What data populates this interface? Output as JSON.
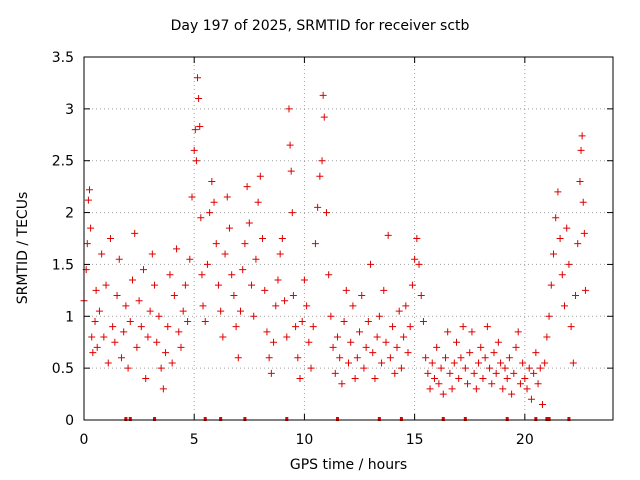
{
  "chart_data": {
    "type": "scatter",
    "title": "Day 197 of 2025, SRMTID for receiver sctb",
    "xlabel": "GPS time / hours",
    "ylabel": "SRMTID / TECUs",
    "xlim": [
      0,
      24
    ],
    "ylim": [
      0,
      3.5
    ],
    "xticks": [
      0,
      5,
      10,
      15,
      20
    ],
    "yticks": [
      0,
      0.5,
      1,
      1.5,
      2,
      2.5,
      3,
      3.5
    ],
    "xtick_labels": [
      "0",
      "5",
      "10",
      "15",
      "20"
    ],
    "ytick_labels": [
      "0",
      "0.5",
      "1",
      "1.5",
      "2",
      "2.5",
      "3",
      "3.5"
    ],
    "grid": true,
    "marker": "+",
    "marker_color": "#e00000",
    "series": [
      {
        "name": "SRMTID",
        "points": [
          [
            0.0,
            1.15
          ],
          [
            0.1,
            1.45
          ],
          [
            0.15,
            1.7
          ],
          [
            0.2,
            2.12
          ],
          [
            0.25,
            2.22
          ],
          [
            0.3,
            1.85
          ],
          [
            0.35,
            0.8
          ],
          [
            0.4,
            0.65
          ],
          [
            0.5,
            0.95
          ],
          [
            0.55,
            1.25
          ],
          [
            0.6,
            0.7
          ],
          [
            0.7,
            1.05
          ],
          [
            0.8,
            1.6
          ],
          [
            0.9,
            0.8
          ],
          [
            1.0,
            1.3
          ],
          [
            1.1,
            0.55
          ],
          [
            1.2,
            1.75
          ],
          [
            1.3,
            0.9
          ],
          [
            1.4,
            0.75
          ],
          [
            1.5,
            1.2
          ],
          [
            1.6,
            1.55
          ],
          [
            1.7,
            0.6
          ],
          [
            1.8,
            0.85
          ],
          [
            1.9,
            1.1
          ],
          [
            2.0,
            0.5
          ],
          [
            2.1,
            0.95
          ],
          [
            2.2,
            1.35
          ],
          [
            2.3,
            1.8
          ],
          [
            2.4,
            0.7
          ],
          [
            2.5,
            1.15
          ],
          [
            2.6,
            0.9
          ],
          [
            2.7,
            1.45
          ],
          [
            2.8,
            0.4
          ],
          [
            2.9,
            0.8
          ],
          [
            3.0,
            1.05
          ],
          [
            3.1,
            1.6
          ],
          [
            3.2,
            1.3
          ],
          [
            3.3,
            0.75
          ],
          [
            3.4,
            1.0
          ],
          [
            3.5,
            0.5
          ],
          [
            3.6,
            0.3
          ],
          [
            3.7,
            0.65
          ],
          [
            3.8,
            0.9
          ],
          [
            3.9,
            1.4
          ],
          [
            4.0,
            0.55
          ],
          [
            4.1,
            1.2
          ],
          [
            4.2,
            1.65
          ],
          [
            4.3,
            0.85
          ],
          [
            4.4,
            0.7
          ],
          [
            4.5,
            1.05
          ],
          [
            4.6,
            1.3
          ],
          [
            4.7,
            0.95
          ],
          [
            4.8,
            1.55
          ],
          [
            4.9,
            2.15
          ],
          [
            5.0,
            2.6
          ],
          [
            5.05,
            2.8
          ],
          [
            5.1,
            2.5
          ],
          [
            5.15,
            3.3
          ],
          [
            5.2,
            3.1
          ],
          [
            5.25,
            2.83
          ],
          [
            5.3,
            1.95
          ],
          [
            5.35,
            1.4
          ],
          [
            5.4,
            1.1
          ],
          [
            5.5,
            0.95
          ],
          [
            5.6,
            1.5
          ],
          [
            5.7,
            2.0
          ],
          [
            5.8,
            2.3
          ],
          [
            5.9,
            2.1
          ],
          [
            6.0,
            1.7
          ],
          [
            6.1,
            1.3
          ],
          [
            6.2,
            1.05
          ],
          [
            6.3,
            0.8
          ],
          [
            6.4,
            1.6
          ],
          [
            6.5,
            2.15
          ],
          [
            6.6,
            1.85
          ],
          [
            6.7,
            1.4
          ],
          [
            6.8,
            1.2
          ],
          [
            6.9,
            0.9
          ],
          [
            7.0,
            0.6
          ],
          [
            7.1,
            1.05
          ],
          [
            7.2,
            1.45
          ],
          [
            7.3,
            1.7
          ],
          [
            7.4,
            2.25
          ],
          [
            7.5,
            1.9
          ],
          [
            7.6,
            1.3
          ],
          [
            7.7,
            1.0
          ],
          [
            7.8,
            1.55
          ],
          [
            7.9,
            2.1
          ],
          [
            8.0,
            2.35
          ],
          [
            8.1,
            1.75
          ],
          [
            8.2,
            1.25
          ],
          [
            8.3,
            0.85
          ],
          [
            8.4,
            0.6
          ],
          [
            8.5,
            0.45
          ],
          [
            8.6,
            0.75
          ],
          [
            8.7,
            1.1
          ],
          [
            8.8,
            1.35
          ],
          [
            8.9,
            1.6
          ],
          [
            9.0,
            1.75
          ],
          [
            9.1,
            1.15
          ],
          [
            9.2,
            0.8
          ],
          [
            9.3,
            3.0
          ],
          [
            9.35,
            2.65
          ],
          [
            9.4,
            2.4
          ],
          [
            9.45,
            2.0
          ],
          [
            9.5,
            1.2
          ],
          [
            9.6,
            0.9
          ],
          [
            9.7,
            0.6
          ],
          [
            9.8,
            0.4
          ],
          [
            9.9,
            0.95
          ],
          [
            10.0,
            1.35
          ],
          [
            10.1,
            1.1
          ],
          [
            10.2,
            0.75
          ],
          [
            10.3,
            0.5
          ],
          [
            10.4,
            0.9
          ],
          [
            10.5,
            1.7
          ],
          [
            10.6,
            2.05
          ],
          [
            10.7,
            2.35
          ],
          [
            10.8,
            2.5
          ],
          [
            10.85,
            3.13
          ],
          [
            10.9,
            2.92
          ],
          [
            11.0,
            2.0
          ],
          [
            11.1,
            1.4
          ],
          [
            11.2,
            1.0
          ],
          [
            11.3,
            0.7
          ],
          [
            11.4,
            0.45
          ],
          [
            11.5,
            0.8
          ],
          [
            11.6,
            0.6
          ],
          [
            11.7,
            0.35
          ],
          [
            11.8,
            0.95
          ],
          [
            11.9,
            1.25
          ],
          [
            12.0,
            0.55
          ],
          [
            12.1,
            0.75
          ],
          [
            12.2,
            1.1
          ],
          [
            12.3,
            0.4
          ],
          [
            12.4,
            0.6
          ],
          [
            12.5,
            0.85
          ],
          [
            12.6,
            1.2
          ],
          [
            12.7,
            0.5
          ],
          [
            12.8,
            0.7
          ],
          [
            12.9,
            0.95
          ],
          [
            13.0,
            1.5
          ],
          [
            13.1,
            0.65
          ],
          [
            13.2,
            0.4
          ],
          [
            13.3,
            0.8
          ],
          [
            13.4,
            1.0
          ],
          [
            13.5,
            0.55
          ],
          [
            13.6,
            1.25
          ],
          [
            13.7,
            0.75
          ],
          [
            13.8,
            1.78
          ],
          [
            13.9,
            0.6
          ],
          [
            14.0,
            0.9
          ],
          [
            14.1,
            0.45
          ],
          [
            14.2,
            0.7
          ],
          [
            14.3,
            1.05
          ],
          [
            14.4,
            0.5
          ],
          [
            14.5,
            0.8
          ],
          [
            14.6,
            1.1
          ],
          [
            14.7,
            0.65
          ],
          [
            14.8,
            0.9
          ],
          [
            14.9,
            1.3
          ],
          [
            15.0,
            1.55
          ],
          [
            15.1,
            1.75
          ],
          [
            15.2,
            1.5
          ],
          [
            15.3,
            1.2
          ],
          [
            15.4,
            0.95
          ],
          [
            15.5,
            0.6
          ],
          [
            15.6,
            0.45
          ],
          [
            15.7,
            0.3
          ],
          [
            15.8,
            0.55
          ],
          [
            15.9,
            0.4
          ],
          [
            16.0,
            0.7
          ],
          [
            16.1,
            0.35
          ],
          [
            16.2,
            0.5
          ],
          [
            16.3,
            0.25
          ],
          [
            16.4,
            0.6
          ],
          [
            16.5,
            0.85
          ],
          [
            16.6,
            0.45
          ],
          [
            16.7,
            0.3
          ],
          [
            16.8,
            0.55
          ],
          [
            16.9,
            0.75
          ],
          [
            17.0,
            0.4
          ],
          [
            17.1,
            0.6
          ],
          [
            17.2,
            0.9
          ],
          [
            17.3,
            0.5
          ],
          [
            17.4,
            0.35
          ],
          [
            17.5,
            0.65
          ],
          [
            17.6,
            0.85
          ],
          [
            17.7,
            0.45
          ],
          [
            17.8,
            0.3
          ],
          [
            17.9,
            0.55
          ],
          [
            18.0,
            0.7
          ],
          [
            18.1,
            0.4
          ],
          [
            18.2,
            0.6
          ],
          [
            18.3,
            0.9
          ],
          [
            18.4,
            0.5
          ],
          [
            18.5,
            0.35
          ],
          [
            18.6,
            0.65
          ],
          [
            18.7,
            0.45
          ],
          [
            18.8,
            0.75
          ],
          [
            18.9,
            0.55
          ],
          [
            19.0,
            0.3
          ],
          [
            19.1,
            0.5
          ],
          [
            19.2,
            0.4
          ],
          [
            19.3,
            0.6
          ],
          [
            19.4,
            0.25
          ],
          [
            19.5,
            0.45
          ],
          [
            19.6,
            0.7
          ],
          [
            19.7,
            0.85
          ],
          [
            19.8,
            0.35
          ],
          [
            19.9,
            0.55
          ],
          [
            20.0,
            0.4
          ],
          [
            20.1,
            0.3
          ],
          [
            20.2,
            0.5
          ],
          [
            20.3,
            0.2
          ],
          [
            20.4,
            0.45
          ],
          [
            20.5,
            0.65
          ],
          [
            20.6,
            0.35
          ],
          [
            20.7,
            0.5
          ],
          [
            20.8,
            0.15
          ],
          [
            20.9,
            0.55
          ],
          [
            21.0,
            0.8
          ],
          [
            21.1,
            1.0
          ],
          [
            21.2,
            1.3
          ],
          [
            21.3,
            1.6
          ],
          [
            21.4,
            1.95
          ],
          [
            21.5,
            2.2
          ],
          [
            21.6,
            1.75
          ],
          [
            21.7,
            1.4
          ],
          [
            21.8,
            1.1
          ],
          [
            21.9,
            1.85
          ],
          [
            22.0,
            1.5
          ],
          [
            22.1,
            0.9
          ],
          [
            22.2,
            0.55
          ],
          [
            22.3,
            1.2
          ],
          [
            22.4,
            1.7
          ],
          [
            22.5,
            2.3
          ],
          [
            22.55,
            2.6
          ],
          [
            22.6,
            2.74
          ],
          [
            22.65,
            2.1
          ],
          [
            22.7,
            1.8
          ],
          [
            22.75,
            1.25
          ]
        ]
      }
    ],
    "baseline_markers_x": [
      1.9,
      2.1,
      3.2,
      5.5,
      6.2,
      7.3,
      9.2,
      11.5,
      13.4,
      14.4,
      16.3,
      17.3,
      19.2,
      20.5,
      21.0,
      21.1,
      22.0
    ]
  }
}
